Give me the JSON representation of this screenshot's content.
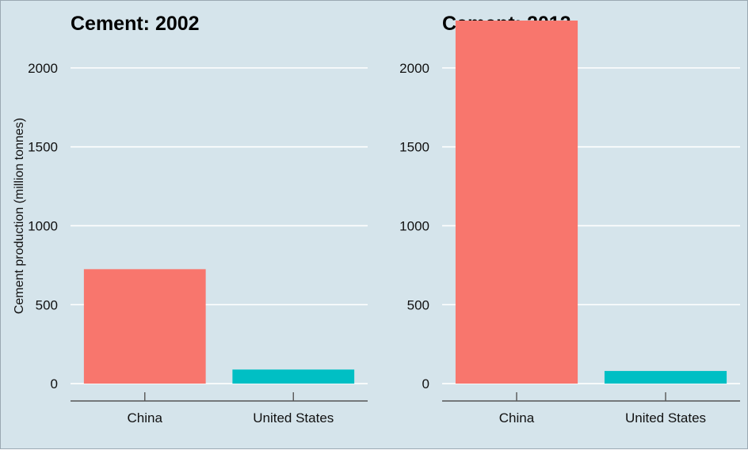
{
  "chart_data": [
    {
      "type": "bar",
      "title": "Cement: 2002",
      "ylabel": "Cement production (million tonnes)",
      "categories": [
        "China",
        "United States"
      ],
      "values": [
        725,
        89
      ],
      "colors": [
        "#f8766d",
        "#00bfc4"
      ],
      "yticks": [
        0,
        500,
        1000,
        1500,
        2000
      ],
      "ylim": [
        -110,
        2300
      ],
      "grid": true
    },
    {
      "type": "bar",
      "title": "Cement: 2012",
      "ylabel": "",
      "categories": [
        "China",
        "United States"
      ],
      "values": [
        2300,
        80
      ],
      "colors": [
        "#f8766d",
        "#00bfc4"
      ],
      "yticks": [
        0,
        500,
        1000,
        1500,
        2000
      ],
      "ylim": [
        -110,
        2300
      ],
      "grid": true
    }
  ]
}
